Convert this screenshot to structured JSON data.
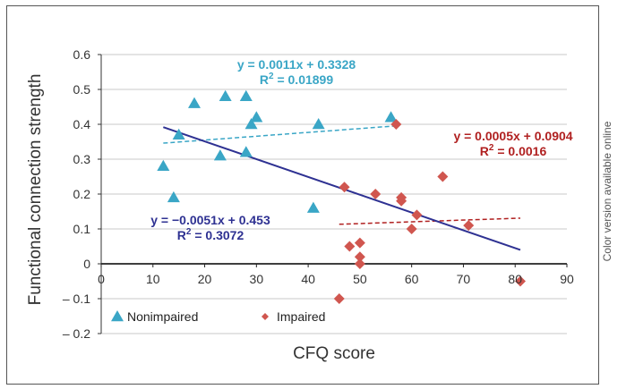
{
  "side_note": "Color version available online",
  "chart_data": {
    "type": "scatter",
    "xlabel": "CFQ score",
    "ylabel": "Functional connection strength",
    "xlim": [
      0,
      90
    ],
    "ylim": [
      -0.2,
      0.6
    ],
    "xticks": [
      "0",
      "10",
      "20",
      "30",
      "40",
      "50",
      "60",
      "70",
      "80",
      "90"
    ],
    "xtick_values": [
      0,
      10,
      20,
      30,
      40,
      50,
      60,
      70,
      80,
      90
    ],
    "yticks": [
      "0.6",
      "0.5",
      "0.4",
      "0.3",
      "0.2",
      "0.1",
      "0",
      "– 0.1",
      "– 0.2"
    ],
    "ytick_values": [
      0.6,
      0.5,
      0.4,
      0.3,
      0.2,
      0.1,
      0,
      -0.1,
      -0.2
    ],
    "grid": true,
    "legend_position": "bottom-left",
    "series": [
      {
        "name": "Nonimpaired",
        "color": "#3aa6c6",
        "marker": "triangle",
        "points": [
          [
            12,
            0.28
          ],
          [
            14,
            0.19
          ],
          [
            15,
            0.37
          ],
          [
            18,
            0.46
          ],
          [
            23,
            0.31
          ],
          [
            24,
            0.48
          ],
          [
            28,
            0.48
          ],
          [
            28,
            0.32
          ],
          [
            29,
            0.4
          ],
          [
            30,
            0.42
          ],
          [
            41,
            0.16
          ],
          [
            42,
            0.4
          ],
          [
            56,
            0.42
          ]
        ],
        "trend": {
          "equation": "y = 0.0011x + 0.3328",
          "r2_prefix": "R",
          "r2_sup": "2",
          "r2_value": " = 0.01899",
          "slope": 0.0011,
          "intercept": 0.3328,
          "x_range": [
            12,
            57
          ],
          "style": "dashed",
          "color": "#3aa6c6"
        }
      },
      {
        "name": "Impaired",
        "color": "#d0564f",
        "marker": "diamond",
        "points": [
          [
            46,
            -0.1
          ],
          [
            47,
            0.22
          ],
          [
            48,
            0.05
          ],
          [
            50,
            0.06
          ],
          [
            50,
            0.02
          ],
          [
            50,
            0.0
          ],
          [
            53,
            0.2
          ],
          [
            57,
            0.4
          ],
          [
            58,
            0.19
          ],
          [
            58,
            0.18
          ],
          [
            60,
            0.1
          ],
          [
            61,
            0.14
          ],
          [
            66,
            0.25
          ],
          [
            71,
            0.11
          ],
          [
            81,
            -0.05
          ]
        ],
        "trend": {
          "equation": "y = 0.0005x + 0.0904",
          "r2_prefix": "R",
          "r2_sup": "2",
          "r2_value": " = 0.0016",
          "slope": 0.0005,
          "intercept": 0.0904,
          "x_range": [
            46,
            81
          ],
          "style": "dashed",
          "color": "#b02020"
        }
      }
    ],
    "overall_trend": {
      "equation": "y = −0.0051x + 0.453",
      "r2_prefix": "R",
      "r2_sup": "2",
      "r2_value": " = 0.3072",
      "slope": -0.0051,
      "intercept": 0.453,
      "x_range": [
        12,
        81
      ],
      "style": "solid",
      "color": "#2e3192"
    }
  }
}
